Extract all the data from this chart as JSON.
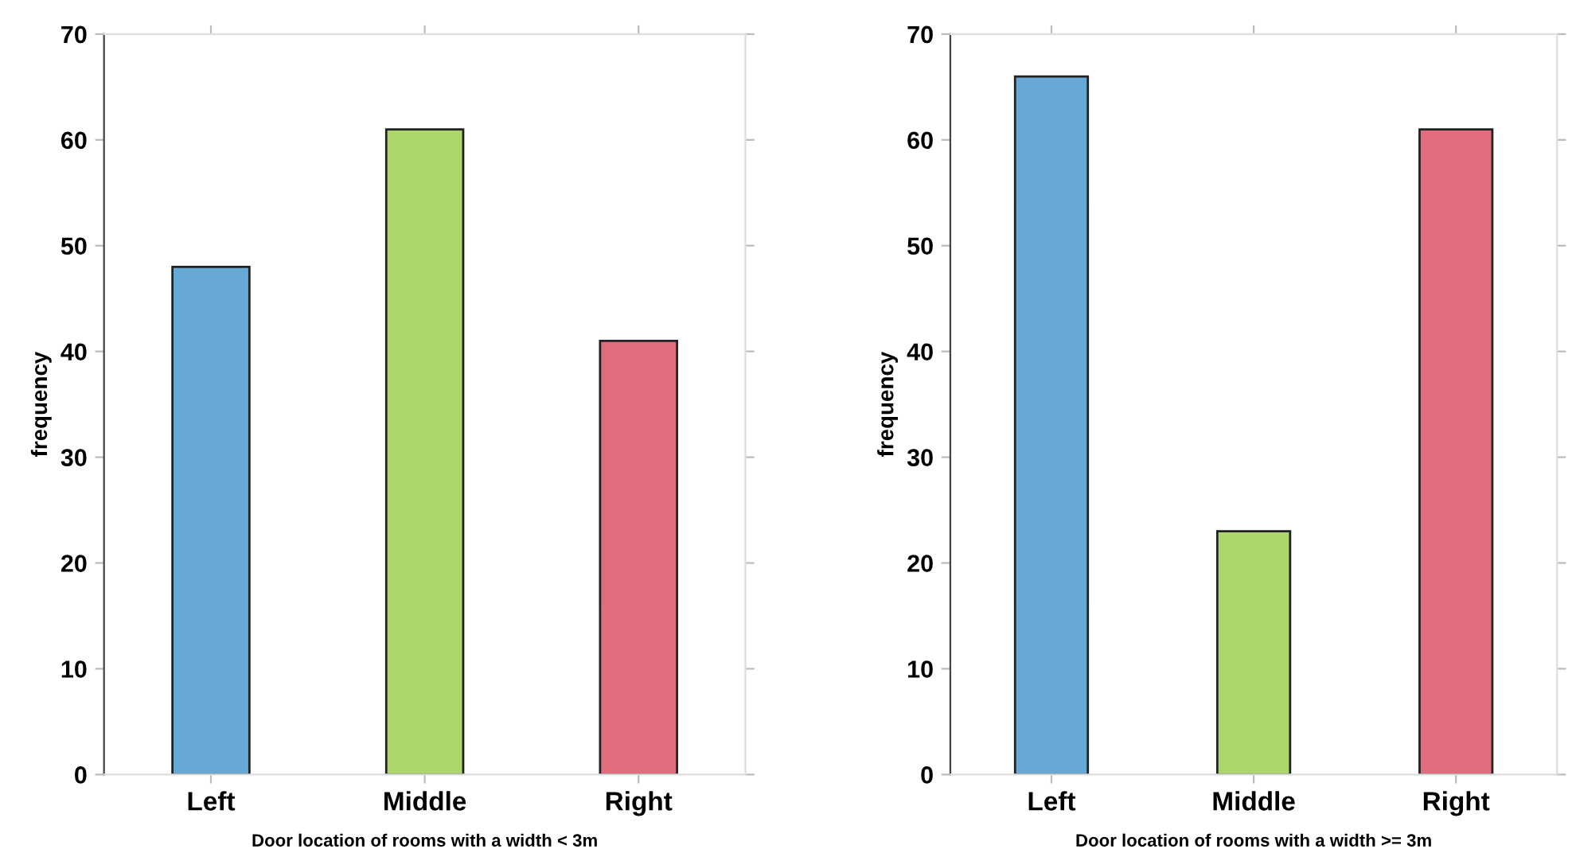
{
  "chart_data": [
    {
      "type": "bar",
      "xlabel": "Door location of rooms with a width < 3m",
      "ylabel": "frequency",
      "categories": [
        "Left",
        "Middle",
        "Right"
      ],
      "values": [
        48,
        61,
        41
      ],
      "colors": [
        "#66a8d6",
        "#acd66b",
        "#e06c7e"
      ],
      "ylim": [
        0,
        70
      ],
      "yticks": [
        0,
        10,
        20,
        30,
        40,
        50,
        60,
        70
      ],
      "grid": false
    },
    {
      "type": "bar",
      "xlabel": "Door location of rooms with a width >= 3m",
      "ylabel": "frequency",
      "categories": [
        "Left",
        "Middle",
        "Right"
      ],
      "values": [
        66,
        23,
        61
      ],
      "colors": [
        "#66a8d6",
        "#acd66b",
        "#e06c7e"
      ],
      "ylim": [
        0,
        70
      ],
      "yticks": [
        0,
        10,
        20,
        30,
        40,
        50,
        60,
        70
      ],
      "grid": false
    }
  ]
}
